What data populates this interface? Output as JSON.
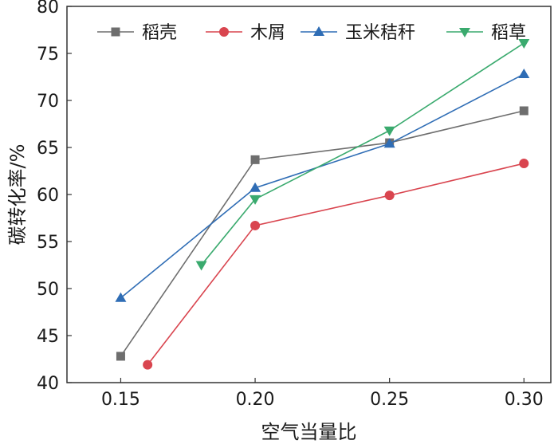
{
  "chart_data": {
    "type": "line",
    "title": "",
    "xlabel": "空气当量比",
    "ylabel": "碳转化率/%",
    "xlim": [
      0.13,
      0.31
    ],
    "ylim": [
      40,
      80
    ],
    "xticks": [
      0.15,
      0.2,
      0.25,
      0.3
    ],
    "xtick_labels": [
      "0.15",
      "0.20",
      "0.25",
      "0.30"
    ],
    "yticks": [
      40,
      45,
      50,
      55,
      60,
      65,
      70,
      75,
      80
    ],
    "ytick_labels": [
      "40",
      "45",
      "50",
      "55",
      "60",
      "65",
      "70",
      "75",
      "80"
    ],
    "grid": false,
    "legend_position": "top",
    "series": [
      {
        "name": "稻壳",
        "color": "#6e6e6e",
        "marker": "square",
        "x": [
          0.15,
          0.2,
          0.25,
          0.3
        ],
        "y": [
          42.8,
          63.7,
          65.5,
          68.9
        ]
      },
      {
        "name": "木屑",
        "color": "#d9454f",
        "marker": "circle",
        "x": [
          0.16,
          0.2,
          0.25,
          0.3
        ],
        "y": [
          41.9,
          56.7,
          59.9,
          63.3
        ]
      },
      {
        "name": "玉米秸秆",
        "color": "#2f6db5",
        "marker": "triangle-up",
        "x": [
          0.15,
          0.2,
          0.25,
          0.3
        ],
        "y": [
          49.0,
          60.7,
          65.4,
          72.8
        ]
      },
      {
        "name": "稻草",
        "color": "#3aaa6e",
        "marker": "triangle-down",
        "x": [
          0.18,
          0.2,
          0.25,
          0.3
        ],
        "y": [
          52.5,
          59.5,
          66.8,
          76.1
        ]
      }
    ]
  }
}
